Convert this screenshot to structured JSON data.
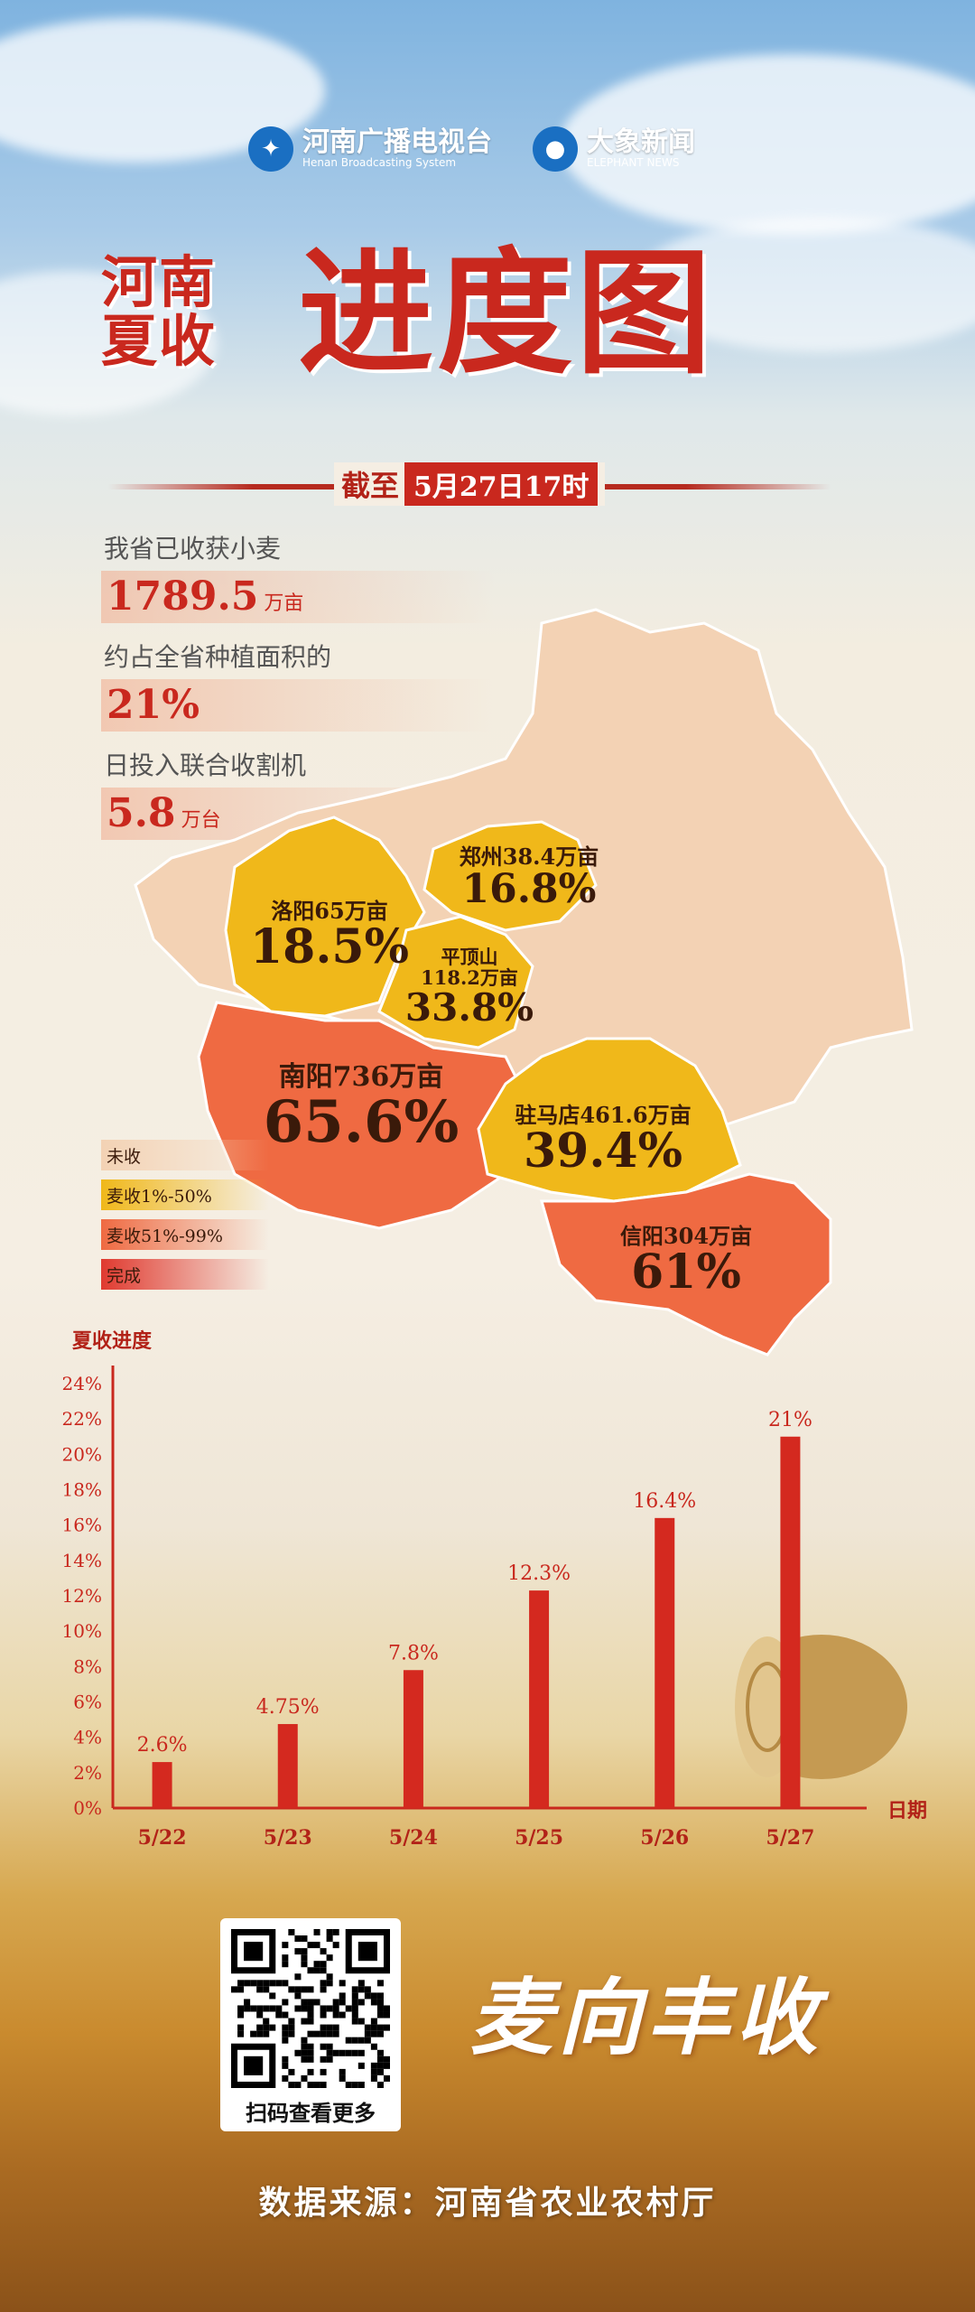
{
  "logos": {
    "left": {
      "name": "河南广播电视台",
      "sub": "Henan Broadcasting System"
    },
    "right": {
      "name": "大象新闻",
      "sub": "ELEPHANT NEWS"
    }
  },
  "title": {
    "small_line1": "河南",
    "small_line2": "夏收",
    "big": "进度图"
  },
  "cutoff": {
    "label": "截至",
    "value": "5月27日17时"
  },
  "stats": [
    {
      "label": "我省已收获小麦",
      "value": "1789.5",
      "unit": "万亩"
    },
    {
      "label": "约占全省种植面积的",
      "value": "21%",
      "unit": ""
    },
    {
      "label": "日投入联合收割机",
      "value": "5.8",
      "unit": "万台"
    }
  ],
  "map": {
    "colors": {
      "not_started": "#f3d2b4",
      "low": "#f0b81a",
      "mid": "#ef6a42",
      "done": "#e03a30"
    },
    "regions": [
      {
        "name": "郑州38.4万亩",
        "percent": "16.8%"
      },
      {
        "name": "洛阳65万亩",
        "percent": "18.5%"
      },
      {
        "name": "平顶山",
        "name2": "118.2万亩",
        "percent": "33.8%"
      },
      {
        "name": "南阳736万亩",
        "percent": "65.6%"
      },
      {
        "name": "驻马店461.6万亩",
        "percent": "39.4%"
      },
      {
        "name": "信阳304万亩",
        "percent": "61%"
      }
    ]
  },
  "legend": [
    {
      "label": "未收",
      "color": "#f3d2b4"
    },
    {
      "label": "麦收1%-50%",
      "color": "#f0b81a"
    },
    {
      "label": "麦收51%-99%",
      "color": "#ef6a42"
    },
    {
      "label": "完成",
      "color": "#e03a30"
    }
  ],
  "chart_data": {
    "type": "bar",
    "title": "夏收进度",
    "xlabel": "日期",
    "ylabel": "夏收进度",
    "categories": [
      "5/22",
      "5/23",
      "5/24",
      "5/25",
      "5/26",
      "5/27"
    ],
    "values": [
      2.6,
      4.75,
      7.8,
      12.3,
      16.4,
      21
    ],
    "value_labels": [
      "2.6%",
      "4.75%",
      "7.8%",
      "12.3%",
      "16.4%",
      "21%"
    ],
    "ylim": [
      0,
      24
    ],
    "yticks": [
      "0%",
      "2%",
      "4%",
      "6%",
      "8%",
      "10%",
      "12%",
      "14%",
      "16%",
      "18%",
      "20%",
      "22%",
      "24%"
    ],
    "grid": false,
    "colors": {
      "bar": "#d4291f",
      "axis": "#c9281e",
      "text": "#c9281e"
    }
  },
  "qr": {
    "caption": "扫码查看更多"
  },
  "slogan": "麦向丰收",
  "source": "数据来源：河南省农业农村厅"
}
